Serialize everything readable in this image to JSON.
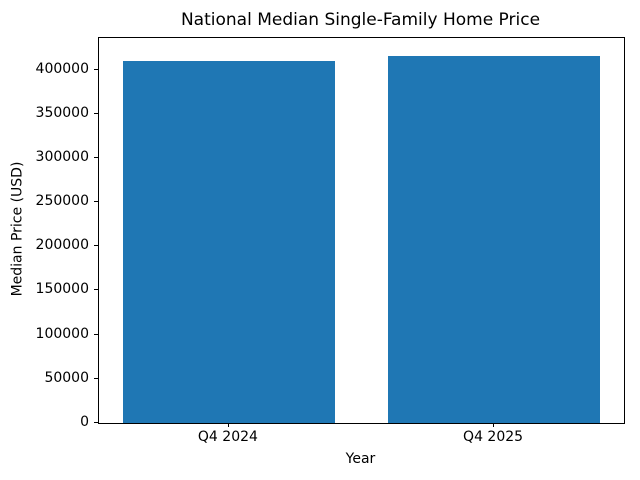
{
  "chart_data": {
    "type": "bar",
    "title": "National Median Single-Family Home Price",
    "xlabel": "Year",
    "ylabel": "Median Price (USD)",
    "categories": [
      "Q4 2024",
      "Q4 2025"
    ],
    "values": [
      410000,
      415000
    ],
    "ylim": [
      0,
      435750
    ],
    "xlim": [
      -0.49,
      1.49
    ],
    "yticks": [
      0,
      50000,
      100000,
      150000,
      200000,
      250000,
      300000,
      350000,
      400000
    ],
    "bar_color": "#1f77b4",
    "bar_width_ratio": 0.8,
    "grid": false,
    "legend_position": "none",
    "background_color": "#ffffff"
  }
}
